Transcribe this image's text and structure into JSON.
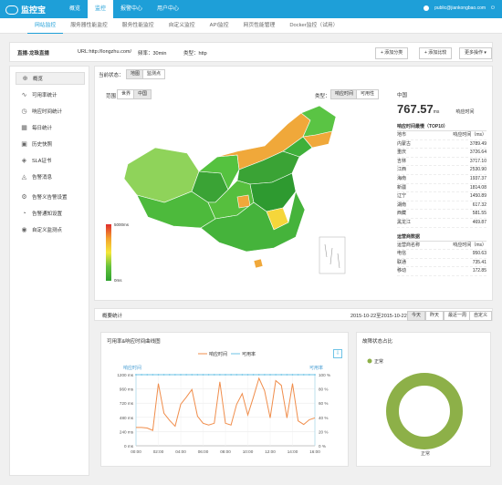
{
  "app": {
    "logo_text": "监控宝",
    "nav": [
      "概览",
      "监控",
      "报警中心",
      "用户中心"
    ],
    "active_nav": 1,
    "user": "public@jiankongbao.com"
  },
  "subnav": {
    "items": [
      "网站监控",
      "服务器性能监控",
      "服务性能监控",
      "自定义监控",
      "API监控",
      "网页性能管理",
      "Docker监控（试用）"
    ],
    "active": 0
  },
  "header": {
    "task": "直播-龙珠直播",
    "url": "URL:http://longzhu.com/",
    "interval": "频率：30min",
    "type": "类型：http",
    "buttons": [
      "+ 添加分类",
      "+ 添加比较",
      "更多操作 ▾"
    ]
  },
  "sidebar": {
    "items": [
      {
        "label": "概览",
        "icon": "globe-icon",
        "glyph": "⊕"
      },
      {
        "label": "可用率统计",
        "icon": "trend-icon",
        "glyph": "∿"
      },
      {
        "label": "响应时间统计",
        "icon": "clock-icon",
        "glyph": "◷"
      },
      {
        "label": "每日统计",
        "icon": "calendar-icon",
        "glyph": "▦"
      },
      {
        "label": "历史快照",
        "icon": "camera-icon",
        "glyph": "▣"
      },
      {
        "label": "SLA证书",
        "icon": "certificate-icon",
        "glyph": "◈"
      },
      {
        "label": "告警消息",
        "icon": "alert-icon",
        "glyph": "◬"
      },
      {
        "label": "告警义告警设置",
        "icon": "settings-icon",
        "glyph": "⚙"
      },
      {
        "label": "告警通知设置",
        "icon": "bell-icon",
        "glyph": "◔"
      },
      {
        "label": "自定义监测点",
        "icon": "pin-icon",
        "glyph": "◉"
      }
    ],
    "active": 0
  },
  "map_panel": {
    "status_label": "当前状态：",
    "status_tabs": [
      "地图",
      "监测点"
    ],
    "range_label": "范围：",
    "range_tabs": [
      "世界",
      "中国"
    ],
    "type_label": "类型：",
    "type_tabs": [
      "响应时间",
      "可用性"
    ],
    "legend_max": "5000ms",
    "legend_min": "0ms"
  },
  "stats": {
    "region": "中国",
    "value": "767.57",
    "unit": "ms",
    "value_caption": "响应时间",
    "top10_title": "响应时间最慢（TOP10）",
    "col1": "地市",
    "col2": "响应时间（ms）",
    "top10": [
      [
        "内蒙古",
        "3789.49"
      ],
      [
        "重庆",
        "3726.64"
      ],
      [
        "吉林",
        "3717.10"
      ],
      [
        "江西",
        "2530.90"
      ],
      [
        "海南",
        "1937.37"
      ],
      [
        "新疆",
        "1814.08"
      ],
      [
        "辽宁",
        "1450.89"
      ],
      [
        "湖南",
        "617.32"
      ],
      [
        "西藏",
        "581.55"
      ],
      [
        "黑龙江",
        "469.87"
      ]
    ],
    "isp_title": "运营商数据",
    "isp_col1": "运营商名称",
    "isp_col2": "响应时间（ms）",
    "isp": [
      [
        "电信",
        "950.63"
      ],
      [
        "联通",
        "735.41"
      ],
      [
        "移动",
        "172.85"
      ]
    ]
  },
  "bottom": {
    "title": "概要统计",
    "date_range": "2015-10-22至2015-10-22",
    "buttons": [
      "今天",
      "昨天",
      "最近一周",
      "自定义"
    ]
  },
  "line_chart": {
    "title": "可用率&响应时间曲线图",
    "legend": [
      "响应时间",
      "可用率"
    ],
    "ylabel_left": "响应时间",
    "ylabel_right": "可用率"
  },
  "pie_chart": {
    "title": "故障状态占比",
    "legend": "正常",
    "slice_label": "正常"
  },
  "chart_data": [
    {
      "type": "line",
      "title": "可用率&响应时间曲线图",
      "x": [
        "00:00",
        "00:30",
        "01:00",
        "01:30",
        "02:00",
        "02:30",
        "03:00",
        "03:30",
        "04:00",
        "04:30",
        "05:00",
        "05:30",
        "06:00",
        "06:30",
        "07:00",
        "07:30",
        "08:00",
        "08:30",
        "09:00",
        "09:30",
        "10:00",
        "10:30",
        "11:00",
        "11:30",
        "12:00",
        "12:30",
        "13:00",
        "13:30",
        "14:00",
        "14:30",
        "15:00",
        "15:30",
        "16:00"
      ],
      "xticks": [
        "00:00",
        "02:00",
        "04:00",
        "06:00",
        "08:00",
        "10:00",
        "12:00",
        "14:00",
        "16:00"
      ],
      "series": [
        {
          "name": "响应时间",
          "axis": "left",
          "color": "#f08d4b",
          "values": [
            310,
            310,
            300,
            260,
            1050,
            550,
            430,
            330,
            700,
            820,
            950,
            500,
            380,
            350,
            380,
            1080,
            380,
            350,
            700,
            880,
            520,
            820,
            1140,
            930,
            470,
            1100,
            1020,
            470,
            1050,
            420,
            360,
            440,
            470
          ]
        },
        {
          "name": "可用率",
          "axis": "right",
          "color": "#6ec3e6",
          "values": [
            100,
            100,
            100,
            100,
            100,
            100,
            100,
            100,
            100,
            100,
            100,
            100,
            100,
            100,
            100,
            100,
            100,
            100,
            100,
            100,
            100,
            100,
            100,
            100,
            100,
            100,
            100,
            100,
            100,
            100,
            100,
            100,
            100
          ]
        }
      ],
      "ylim_left": [
        0,
        1200
      ],
      "yticks_left": [
        "0 ms",
        "240 ms",
        "480 ms",
        "720 ms",
        "960 ms",
        "1200 ms"
      ],
      "ylim_right": [
        0,
        100
      ],
      "yticks_right": [
        "0 %",
        "20 %",
        "40 %",
        "60 %",
        "80 %",
        "100 %"
      ]
    },
    {
      "type": "pie",
      "title": "故障状态占比",
      "labels": [
        "正常"
      ],
      "values": [
        100
      ],
      "colors": [
        "#8db048"
      ]
    }
  ],
  "colors": {
    "brand": "#1e9fd8",
    "good": "#2fa22f",
    "warn": "#f3a12d"
  }
}
